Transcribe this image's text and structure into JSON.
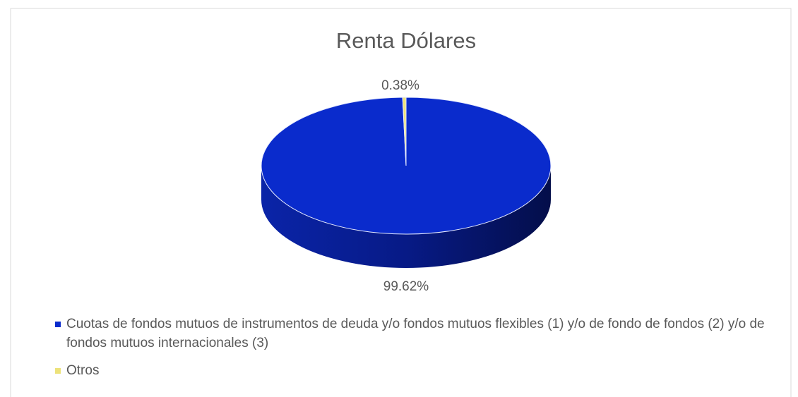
{
  "chart_data": {
    "type": "pie",
    "title": "Renta Dólares",
    "categories": [
      "Cuotas de fondos mutuos de instrumentos de deuda y/o fondos mutuos flexibles (1) y/o de fondo de fondos (2) y/o de fondos mutuos internacionales (3)",
      "Otros"
    ],
    "values": [
      99.62,
      0.38
    ],
    "value_labels": [
      "99.62%",
      "0.38%"
    ],
    "colors": [
      "#0a2bcc",
      "#ede27a"
    ],
    "legend": "bottom"
  }
}
